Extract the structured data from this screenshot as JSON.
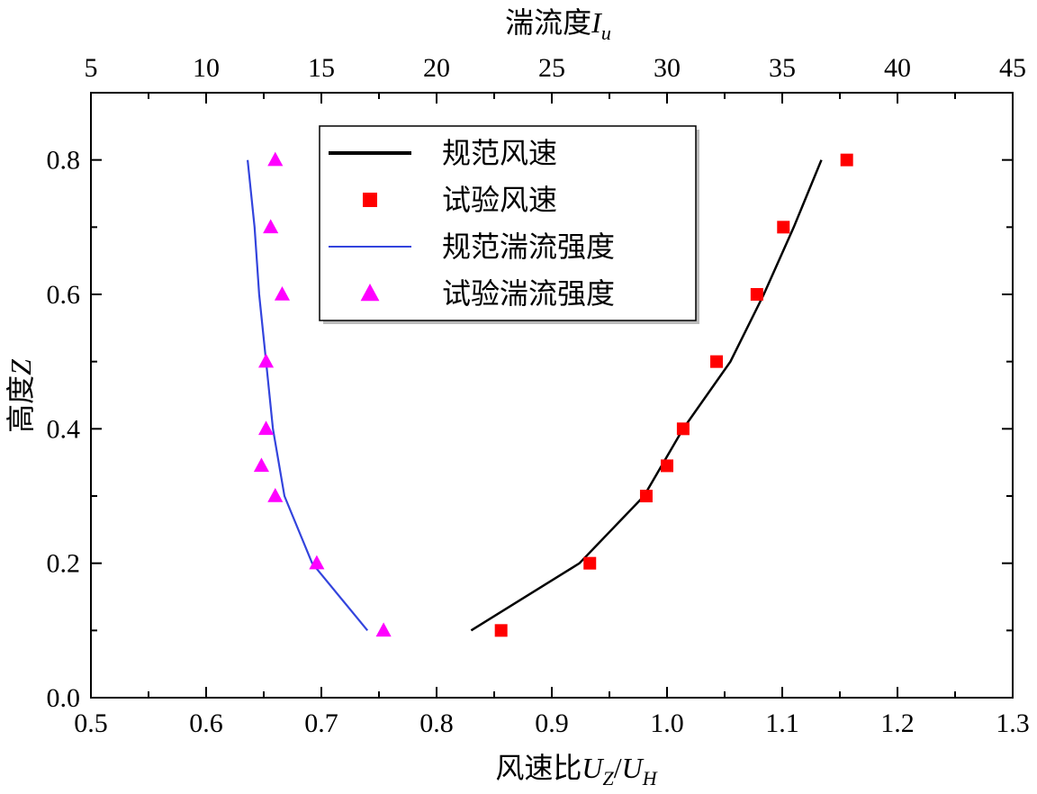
{
  "chart_data": {
    "type": "scatter",
    "x_bottom": {
      "label_main": "风速比",
      "label_var1": "U",
      "label_sub1": "Z",
      "label_slash": "/",
      "label_var2": "U",
      "label_sub2": "H",
      "range": [
        0.5,
        1.3
      ],
      "ticks": [
        0.5,
        0.6,
        0.7,
        0.8,
        0.9,
        1.0,
        1.1,
        1.2,
        1.3
      ],
      "tick_labels": [
        "0.5",
        "0.6",
        "0.7",
        "0.8",
        "0.9",
        "1.0",
        "1.1",
        "1.2",
        "1.3"
      ]
    },
    "x_top": {
      "label_main": "湍流度",
      "label_var": "I",
      "label_sub": "u",
      "range": [
        5,
        45
      ],
      "ticks": [
        5,
        10,
        15,
        20,
        25,
        30,
        35,
        40,
        45
      ],
      "tick_labels": [
        "5",
        "10",
        "15",
        "20",
        "25",
        "30",
        "35",
        "40",
        "45"
      ]
    },
    "y": {
      "label_main": "高度",
      "label_var": "Z",
      "range": [
        0,
        0.9
      ],
      "ticks": [
        0.0,
        0.2,
        0.4,
        0.6,
        0.8
      ],
      "tick_labels": [
        "0.0",
        "0.2",
        "0.4",
        "0.6",
        "0.8"
      ]
    },
    "grid": false,
    "legend_position": "top-center",
    "series": [
      {
        "name": "规范风速",
        "kind": "line",
        "axis": "bottom",
        "color": "#000000",
        "points": [
          [
            0.83,
            0.1
          ],
          [
            0.924,
            0.2
          ],
          [
            0.98,
            0.3
          ],
          [
            1.014,
            0.4
          ],
          [
            1.055,
            0.5
          ],
          [
            1.084,
            0.6
          ],
          [
            1.11,
            0.7
          ],
          [
            1.134,
            0.8
          ]
        ]
      },
      {
        "name": "试验风速",
        "kind": "marker",
        "marker": "square",
        "axis": "bottom",
        "color": "#ff0000",
        "points": [
          [
            0.856,
            0.1
          ],
          [
            0.933,
            0.2
          ],
          [
            0.982,
            0.3
          ],
          [
            1.0,
            0.345
          ],
          [
            1.014,
            0.4
          ],
          [
            1.043,
            0.5
          ],
          [
            1.078,
            0.6
          ],
          [
            1.101,
            0.7
          ],
          [
            1.156,
            0.8
          ]
        ]
      },
      {
        "name": "规范湍流强度",
        "kind": "line",
        "axis": "top",
        "color": "#3344dd",
        "points": [
          [
            17.0,
            0.1
          ],
          [
            14.6,
            0.2
          ],
          [
            13.4,
            0.3
          ],
          [
            12.9,
            0.4
          ],
          [
            12.6,
            0.5
          ],
          [
            12.3,
            0.6
          ],
          [
            12.1,
            0.7
          ],
          [
            11.8,
            0.8
          ]
        ]
      },
      {
        "name": "试验湍流强度",
        "kind": "marker",
        "marker": "triangle",
        "axis": "top",
        "color": "#ff00ff",
        "points": [
          [
            17.7,
            0.1
          ],
          [
            14.8,
            0.2
          ],
          [
            13.0,
            0.3
          ],
          [
            12.4,
            0.345
          ],
          [
            12.6,
            0.4
          ],
          [
            12.6,
            0.5
          ],
          [
            13.3,
            0.6
          ],
          [
            12.8,
            0.7
          ],
          [
            13.0,
            0.8
          ]
        ]
      }
    ]
  }
}
